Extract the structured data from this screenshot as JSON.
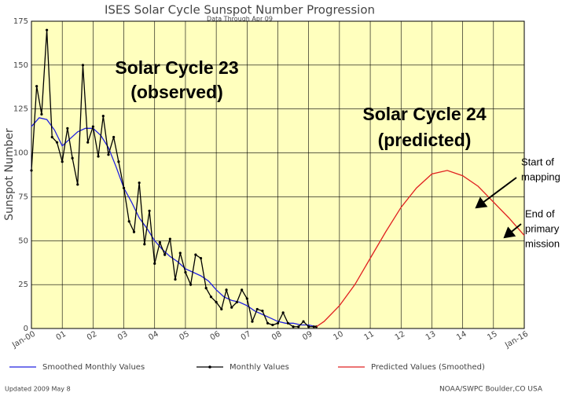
{
  "chart_data": {
    "type": "line",
    "title": "ISES Solar Cycle Sunspot Number Progression",
    "subtitle": "Data Through Apr 09",
    "ylabel": "Sunspot Number",
    "xlim": [
      2000,
      2016
    ],
    "ylim": [
      0,
      175
    ],
    "xticks": [
      {
        "value": 2000,
        "label": "Jan-00"
      },
      {
        "value": 2001,
        "label": "01"
      },
      {
        "value": 2002,
        "label": "02"
      },
      {
        "value": 2003,
        "label": "03"
      },
      {
        "value": 2004,
        "label": "04"
      },
      {
        "value": 2005,
        "label": "05"
      },
      {
        "value": 2006,
        "label": "06"
      },
      {
        "value": 2007,
        "label": "07"
      },
      {
        "value": 2008,
        "label": "08"
      },
      {
        "value": 2009,
        "label": "09"
      },
      {
        "value": 2010,
        "label": "10"
      },
      {
        "value": 2011,
        "label": "11"
      },
      {
        "value": 2012,
        "label": "12"
      },
      {
        "value": 2013,
        "label": "13"
      },
      {
        "value": 2014,
        "label": "14"
      },
      {
        "value": 2015,
        "label": "15"
      },
      {
        "value": 2016,
        "label": "Jan-16"
      }
    ],
    "yticks": [
      0,
      25,
      50,
      75,
      100,
      125,
      150,
      175
    ],
    "grid": true,
    "series": [
      {
        "name": "Smoothed Monthly Values",
        "color": "#2020e0",
        "marker": "none",
        "x": [
          2000,
          2000.25,
          2000.5,
          2000.75,
          2001,
          2001.25,
          2001.5,
          2001.75,
          2002,
          2002.25,
          2002.5,
          2002.75,
          2003,
          2003.25,
          2003.5,
          2003.75,
          2004,
          2004.25,
          2004.5,
          2004.75,
          2005,
          2005.25,
          2005.5,
          2005.75,
          2006,
          2006.25,
          2006.5,
          2006.75,
          2007,
          2007.25,
          2007.5,
          2007.75,
          2008,
          2008.25,
          2008.5,
          2008.75,
          2009,
          2009.25
        ],
        "values": [
          115,
          120,
          119,
          113,
          104,
          108,
          112,
          114,
          114,
          110,
          103,
          92,
          80,
          72,
          63,
          57,
          50,
          45,
          41,
          38,
          34,
          32,
          30,
          27,
          22,
          18,
          16,
          15,
          13,
          10,
          8,
          6,
          4,
          3,
          3,
          2,
          2,
          1
        ]
      },
      {
        "name": "Monthly Values",
        "color": "#000000",
        "marker": "dot",
        "x": [
          2000,
          2000.17,
          2000.33,
          2000.5,
          2000.67,
          2000.83,
          2001,
          2001.17,
          2001.33,
          2001.5,
          2001.67,
          2001.83,
          2002,
          2002.17,
          2002.33,
          2002.5,
          2002.67,
          2002.83,
          2003,
          2003.17,
          2003.33,
          2003.5,
          2003.67,
          2003.83,
          2004,
          2004.17,
          2004.33,
          2004.5,
          2004.67,
          2004.83,
          2005,
          2005.17,
          2005.33,
          2005.5,
          2005.67,
          2005.83,
          2006,
          2006.17,
          2006.33,
          2006.5,
          2006.67,
          2006.83,
          2007,
          2007.17,
          2007.33,
          2007.5,
          2007.67,
          2007.83,
          2008,
          2008.17,
          2008.33,
          2008.5,
          2008.67,
          2008.83,
          2009,
          2009.17,
          2009.25
        ],
        "values": [
          90,
          138,
          122,
          170,
          109,
          106,
          95,
          114,
          97,
          82,
          150,
          106,
          115,
          98,
          121,
          99,
          109,
          95,
          80,
          61,
          55,
          83,
          48,
          67,
          37,
          49,
          42,
          51,
          28,
          43,
          32,
          25,
          42,
          40,
          23,
          18,
          15,
          11,
          22,
          12,
          15,
          22,
          17,
          4,
          11,
          10,
          3,
          2,
          3,
          9,
          3,
          1,
          1,
          4,
          1,
          1,
          1
        ]
      },
      {
        "name": "Predicted Values (Smoothed)",
        "color": "#e02020",
        "marker": "none",
        "x": [
          2009.25,
          2009.5,
          2010,
          2010.5,
          2011,
          2011.5,
          2012,
          2012.5,
          2013,
          2013.5,
          2014,
          2014.5,
          2015,
          2015.5,
          2016
        ],
        "values": [
          1,
          4,
          13,
          25,
          40,
          55,
          69,
          80,
          88,
          90,
          87,
          81,
          72,
          63,
          53
        ]
      }
    ],
    "annotations": [
      {
        "lines": [
          "Solar Cycle 23",
          "(observed)"
        ]
      },
      {
        "lines": [
          "Solar Cycle 24",
          "(predicted)"
        ]
      },
      {
        "lines": [
          "Start of",
          "mapping"
        ]
      },
      {
        "lines": [
          "End of",
          "primary",
          "mission"
        ]
      }
    ]
  },
  "footer": [
    "Updated 2009 May 8",
    "NOAA/SWPC Boulder,CO USA"
  ]
}
